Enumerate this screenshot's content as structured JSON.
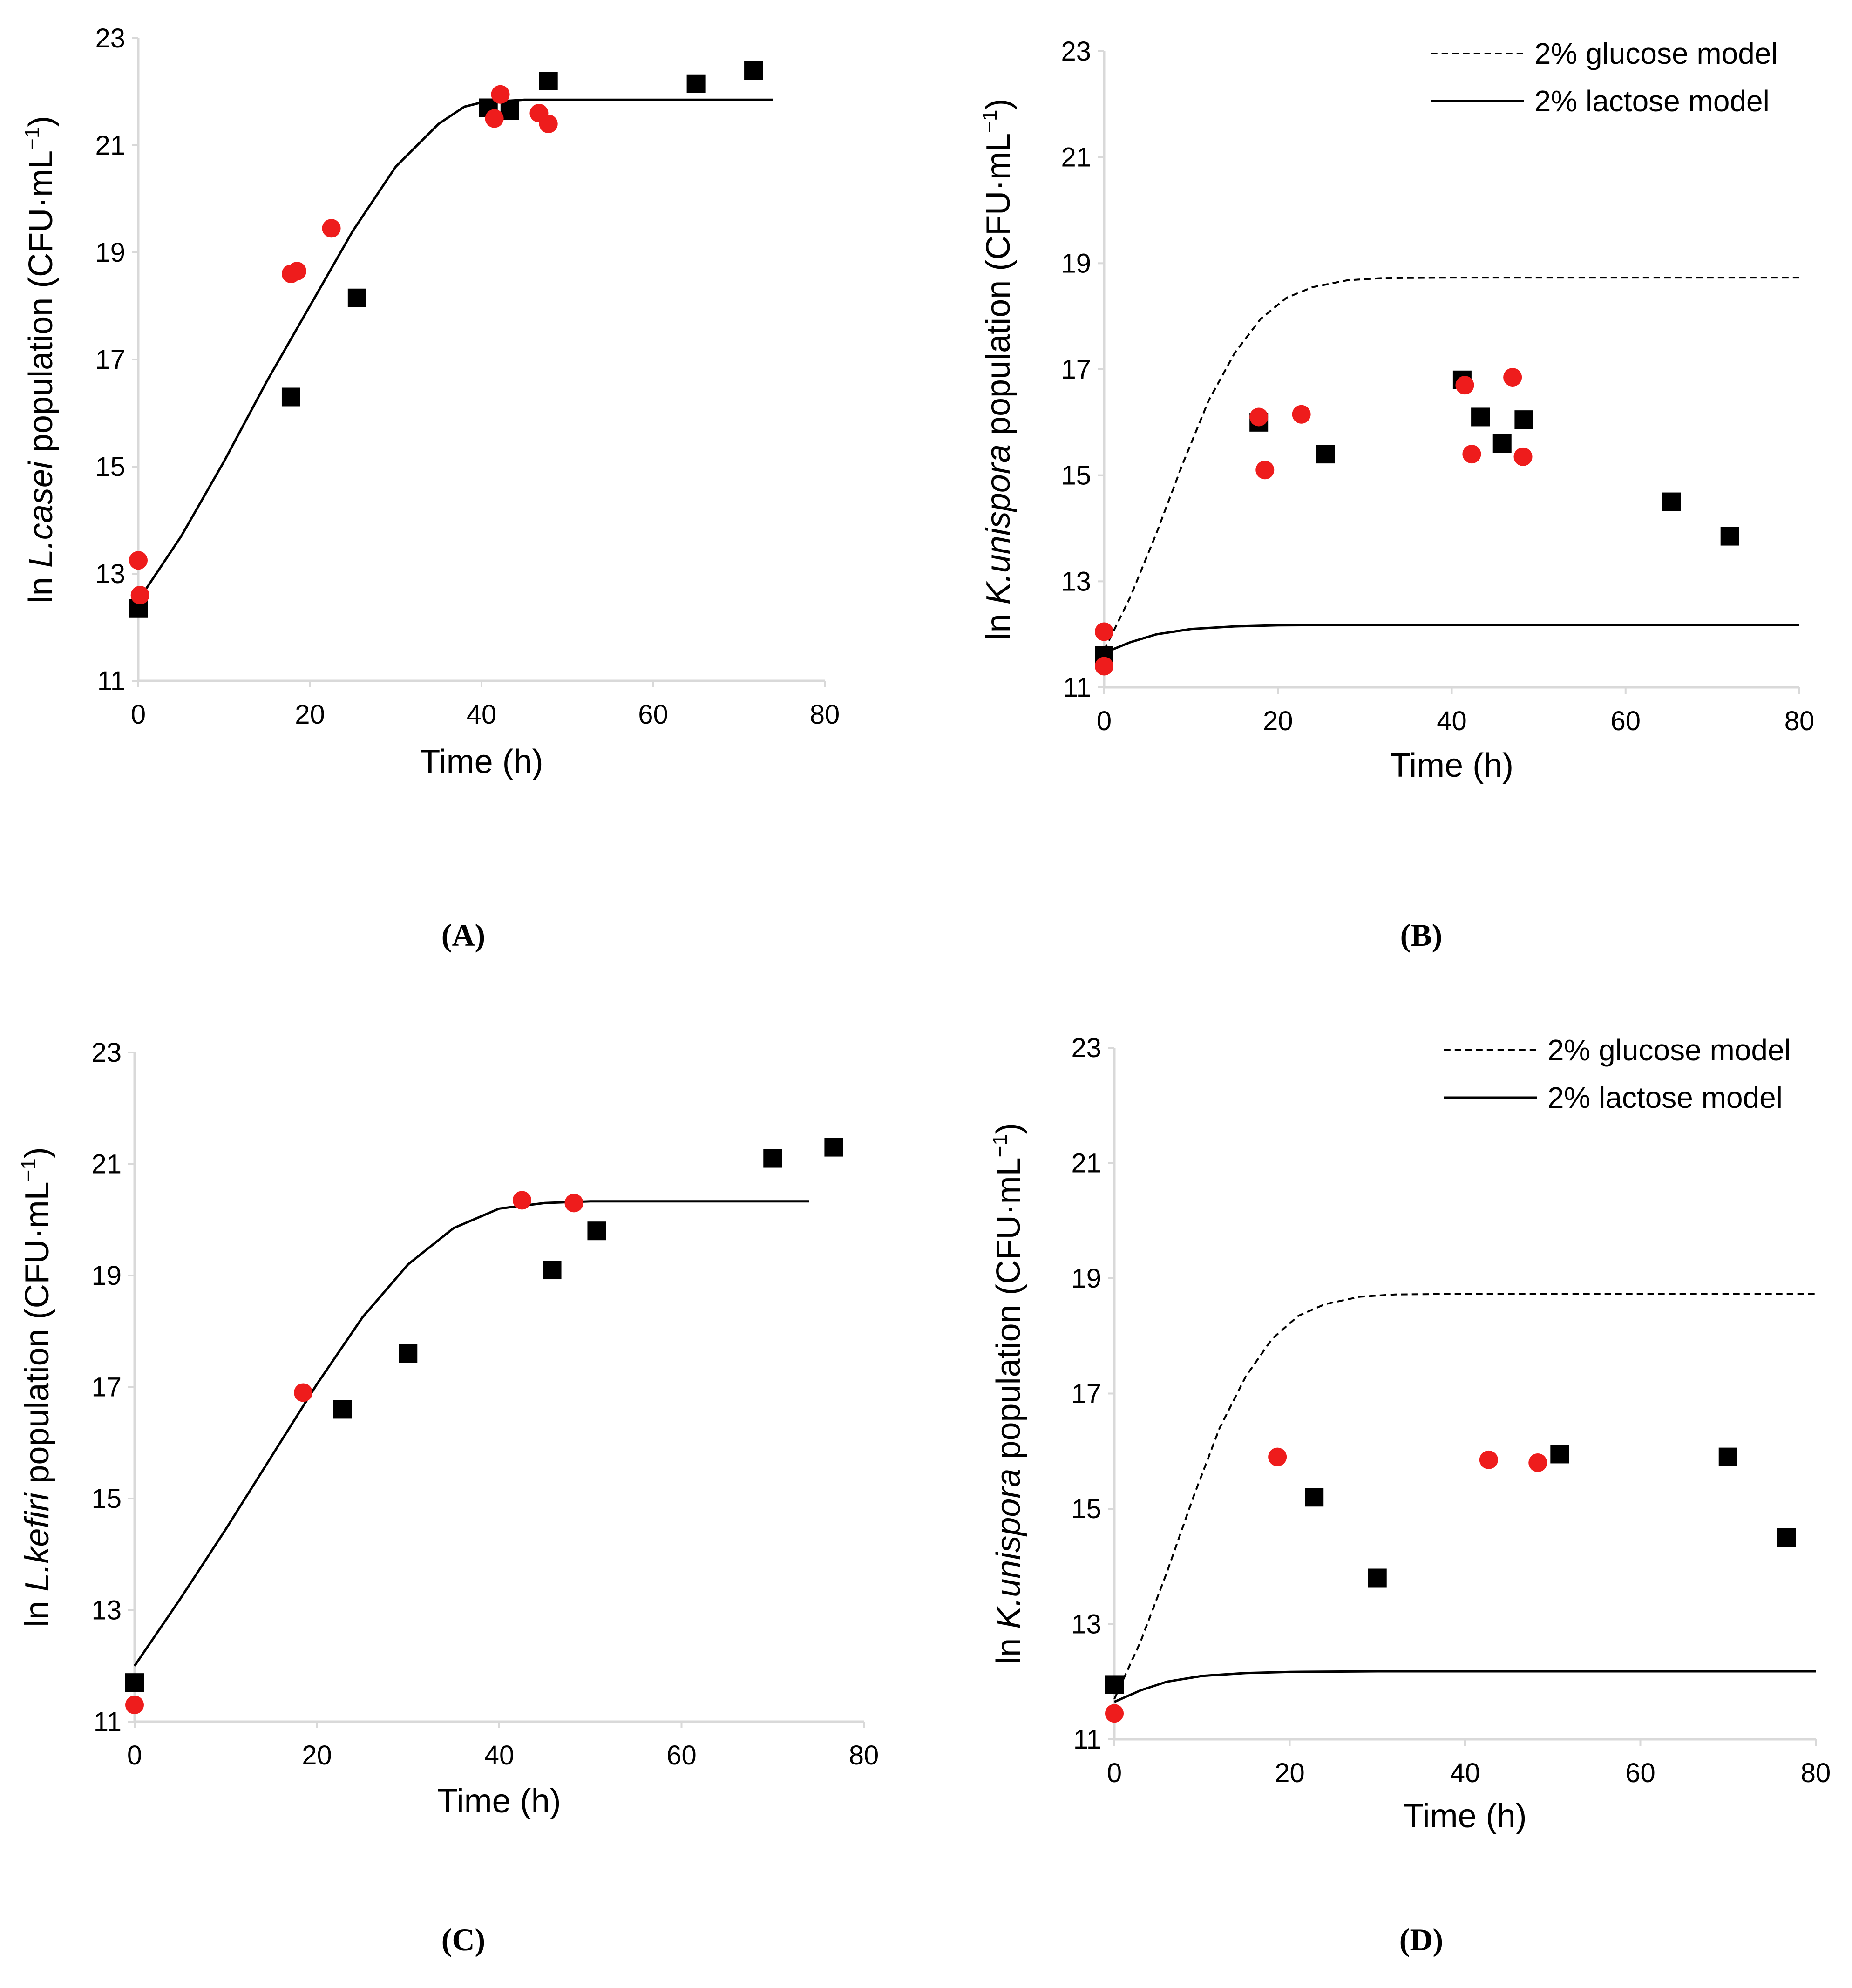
{
  "figure_caption_labels": [
    "(A)",
    "(B)",
    "(C)",
    "(D)"
  ],
  "colors": {
    "circle": "#ee1c1c",
    "square": "#000000",
    "line": "#000000",
    "axis": "#d9d9d9"
  },
  "chart_data": [
    {
      "id": "A",
      "panel_label": "(A)",
      "type": "scatter",
      "title": "",
      "xlabel": "Time (h)",
      "ylabel_parts": [
        "ln ",
        "L.casei",
        " population (CFU·mL",
        "−1",
        ")"
      ],
      "xlim": [
        0,
        80
      ],
      "ylim": [
        11,
        23
      ],
      "xticks": [
        0,
        20,
        40,
        60,
        80
      ],
      "yticks": [
        11,
        13,
        15,
        17,
        19,
        21,
        23
      ],
      "legend": null,
      "series": [
        {
          "name": "squares",
          "marker": "square",
          "points": [
            [
              0,
              12.35
            ],
            [
              17.8,
              16.3
            ],
            [
              25.5,
              18.15
            ],
            [
              40.8,
              21.7
            ],
            [
              43.3,
              21.65
            ],
            [
              47.8,
              22.2
            ],
            [
              65,
              22.15
            ],
            [
              71.7,
              22.4
            ]
          ]
        },
        {
          "name": "circles",
          "marker": "circle",
          "points": [
            [
              0,
              13.25
            ],
            [
              0.2,
              12.6
            ],
            [
              17.8,
              18.6
            ],
            [
              18.5,
              18.65
            ],
            [
              22.5,
              19.45
            ],
            [
              41.5,
              21.5
            ],
            [
              42.2,
              21.95
            ],
            [
              46.7,
              21.6
            ],
            [
              47.8,
              21.4
            ]
          ]
        },
        {
          "name": "model",
          "style": "solid",
          "points": [
            [
              0,
              12.5
            ],
            [
              5,
              13.7
            ],
            [
              10,
              15.1
            ],
            [
              15,
              16.6
            ],
            [
              20,
              18.0
            ],
            [
              25,
              19.4
            ],
            [
              30,
              20.6
            ],
            [
              35,
              21.4
            ],
            [
              38,
              21.72
            ],
            [
              40,
              21.8
            ],
            [
              45,
              21.85
            ],
            [
              50,
              21.85
            ],
            [
              60,
              21.85
            ],
            [
              70,
              21.85
            ],
            [
              74,
              21.85
            ]
          ]
        }
      ]
    },
    {
      "id": "B",
      "panel_label": "(B)",
      "type": "scatter",
      "title": "",
      "xlabel": "Time (h)",
      "ylabel_parts": [
        "ln ",
        "K.unispora",
        " population (CFU·mL",
        "−1",
        ")"
      ],
      "xlim": [
        0,
        80
      ],
      "ylim": [
        11,
        23
      ],
      "xticks": [
        0,
        20,
        40,
        60,
        80
      ],
      "yticks": [
        11,
        13,
        15,
        17,
        19,
        21,
        23
      ],
      "legend": [
        {
          "label": "2% glucose model",
          "style": "dashed"
        },
        {
          "label": "2% lactose model",
          "style": "solid"
        }
      ],
      "series": [
        {
          "name": "squares",
          "marker": "square",
          "points": [
            [
              0,
              11.6
            ],
            [
              17.8,
              16.0
            ],
            [
              25.5,
              15.4
            ],
            [
              41.2,
              16.8
            ],
            [
              43.3,
              16.1
            ],
            [
              45.8,
              15.6
            ],
            [
              48.3,
              16.05
            ],
            [
              65.3,
              14.5
            ],
            [
              72,
              13.85
            ]
          ]
        },
        {
          "name": "circles",
          "marker": "circle",
          "points": [
            [
              0,
              12.05
            ],
            [
              0,
              11.4
            ],
            [
              17.8,
              16.1
            ],
            [
              18.5,
              15.1
            ],
            [
              22.7,
              16.15
            ],
            [
              41.5,
              16.7
            ],
            [
              42.3,
              15.4
            ],
            [
              47,
              16.85
            ],
            [
              48.2,
              15.35
            ]
          ]
        },
        {
          "name": "2% glucose model",
          "style": "dashed",
          "points": [
            [
              0,
              11.7
            ],
            [
              3,
              12.7
            ],
            [
              6,
              13.9
            ],
            [
              9,
              15.2
            ],
            [
              12,
              16.4
            ],
            [
              15,
              17.3
            ],
            [
              18,
              17.95
            ],
            [
              21,
              18.35
            ],
            [
              24,
              18.55
            ],
            [
              28,
              18.68
            ],
            [
              32,
              18.72
            ],
            [
              40,
              18.73
            ],
            [
              60,
              18.73
            ],
            [
              80,
              18.73
            ]
          ]
        },
        {
          "name": "2% lactose model",
          "style": "solid",
          "points": [
            [
              0,
              11.65
            ],
            [
              3,
              11.85
            ],
            [
              6,
              12.0
            ],
            [
              10,
              12.1
            ],
            [
              15,
              12.15
            ],
            [
              20,
              12.17
            ],
            [
              30,
              12.18
            ],
            [
              50,
              12.18
            ],
            [
              80,
              12.18
            ]
          ]
        }
      ]
    },
    {
      "id": "C",
      "panel_label": "(C)",
      "type": "scatter",
      "title": "",
      "xlabel": "Time (h)",
      "ylabel_parts": [
        "ln ",
        "L.kefiri",
        " population (CFU·mL",
        "−1",
        ")"
      ],
      "xlim": [
        0,
        80
      ],
      "ylim": [
        11,
        23
      ],
      "xticks": [
        0,
        20,
        40,
        60,
        80
      ],
      "yticks": [
        11,
        13,
        15,
        17,
        19,
        21,
        23
      ],
      "legend": null,
      "series": [
        {
          "name": "squares",
          "marker": "square",
          "points": [
            [
              0,
              11.7
            ],
            [
              22.8,
              16.6
            ],
            [
              30,
              17.6
            ],
            [
              45.8,
              19.1
            ],
            [
              50.7,
              19.8
            ],
            [
              70,
              21.1
            ],
            [
              76.7,
              21.3
            ]
          ]
        },
        {
          "name": "circles",
          "marker": "circle",
          "points": [
            [
              0,
              11.3
            ],
            [
              18.5,
              16.9
            ],
            [
              42.5,
              20.35
            ],
            [
              48.2,
              20.3
            ]
          ]
        },
        {
          "name": "model",
          "style": "solid",
          "points": [
            [
              0,
              12.0
            ],
            [
              5,
              13.2
            ],
            [
              10,
              14.45
            ],
            [
              15,
              15.75
            ],
            [
              20,
              17.05
            ],
            [
              25,
              18.25
            ],
            [
              30,
              19.2
            ],
            [
              35,
              19.85
            ],
            [
              40,
              20.2
            ],
            [
              45,
              20.3
            ],
            [
              50,
              20.33
            ],
            [
              60,
              20.33
            ],
            [
              74,
              20.33
            ]
          ]
        }
      ]
    },
    {
      "id": "D",
      "panel_label": "(D)",
      "type": "scatter",
      "title": "",
      "xlabel": "Time (h)",
      "ylabel_parts": [
        "ln ",
        "K.unispora",
        " population (CFU·mL",
        "−1",
        ")"
      ],
      "xlim": [
        0,
        80
      ],
      "ylim": [
        11,
        23
      ],
      "xticks": [
        0,
        20,
        40,
        60,
        80
      ],
      "yticks": [
        11,
        13,
        15,
        17,
        19,
        21,
        23
      ],
      "legend": [
        {
          "label": "2% glucose model",
          "style": "dashed"
        },
        {
          "label": "2% lactose model",
          "style": "solid"
        }
      ],
      "series": [
        {
          "name": "squares",
          "marker": "square",
          "points": [
            [
              0,
              11.95
            ],
            [
              22.8,
              15.2
            ],
            [
              30,
              13.8
            ],
            [
              50.8,
              15.95
            ],
            [
              70,
              15.9
            ],
            [
              76.7,
              14.5
            ]
          ]
        },
        {
          "name": "circles",
          "marker": "circle",
          "points": [
            [
              0,
              11.45
            ],
            [
              18.6,
              15.9
            ],
            [
              42.7,
              15.85
            ],
            [
              48.3,
              15.8
            ]
          ]
        },
        {
          "name": "2% glucose model",
          "style": "dashed",
          "points": [
            [
              0,
              11.7
            ],
            [
              3,
              12.7
            ],
            [
              6,
              13.9
            ],
            [
              9,
              15.2
            ],
            [
              12,
              16.4
            ],
            [
              15,
              17.3
            ],
            [
              18,
              17.95
            ],
            [
              21,
              18.35
            ],
            [
              24,
              18.55
            ],
            [
              28,
              18.68
            ],
            [
              32,
              18.72
            ],
            [
              40,
              18.73
            ],
            [
              60,
              18.73
            ],
            [
              80,
              18.73
            ]
          ]
        },
        {
          "name": "2% lactose model",
          "style": "solid",
          "points": [
            [
              0,
              11.65
            ],
            [
              3,
              11.85
            ],
            [
              6,
              12.0
            ],
            [
              10,
              12.1
            ],
            [
              15,
              12.15
            ],
            [
              20,
              12.17
            ],
            [
              30,
              12.18
            ],
            [
              50,
              12.18
            ],
            [
              80,
              12.18
            ]
          ]
        }
      ]
    }
  ]
}
